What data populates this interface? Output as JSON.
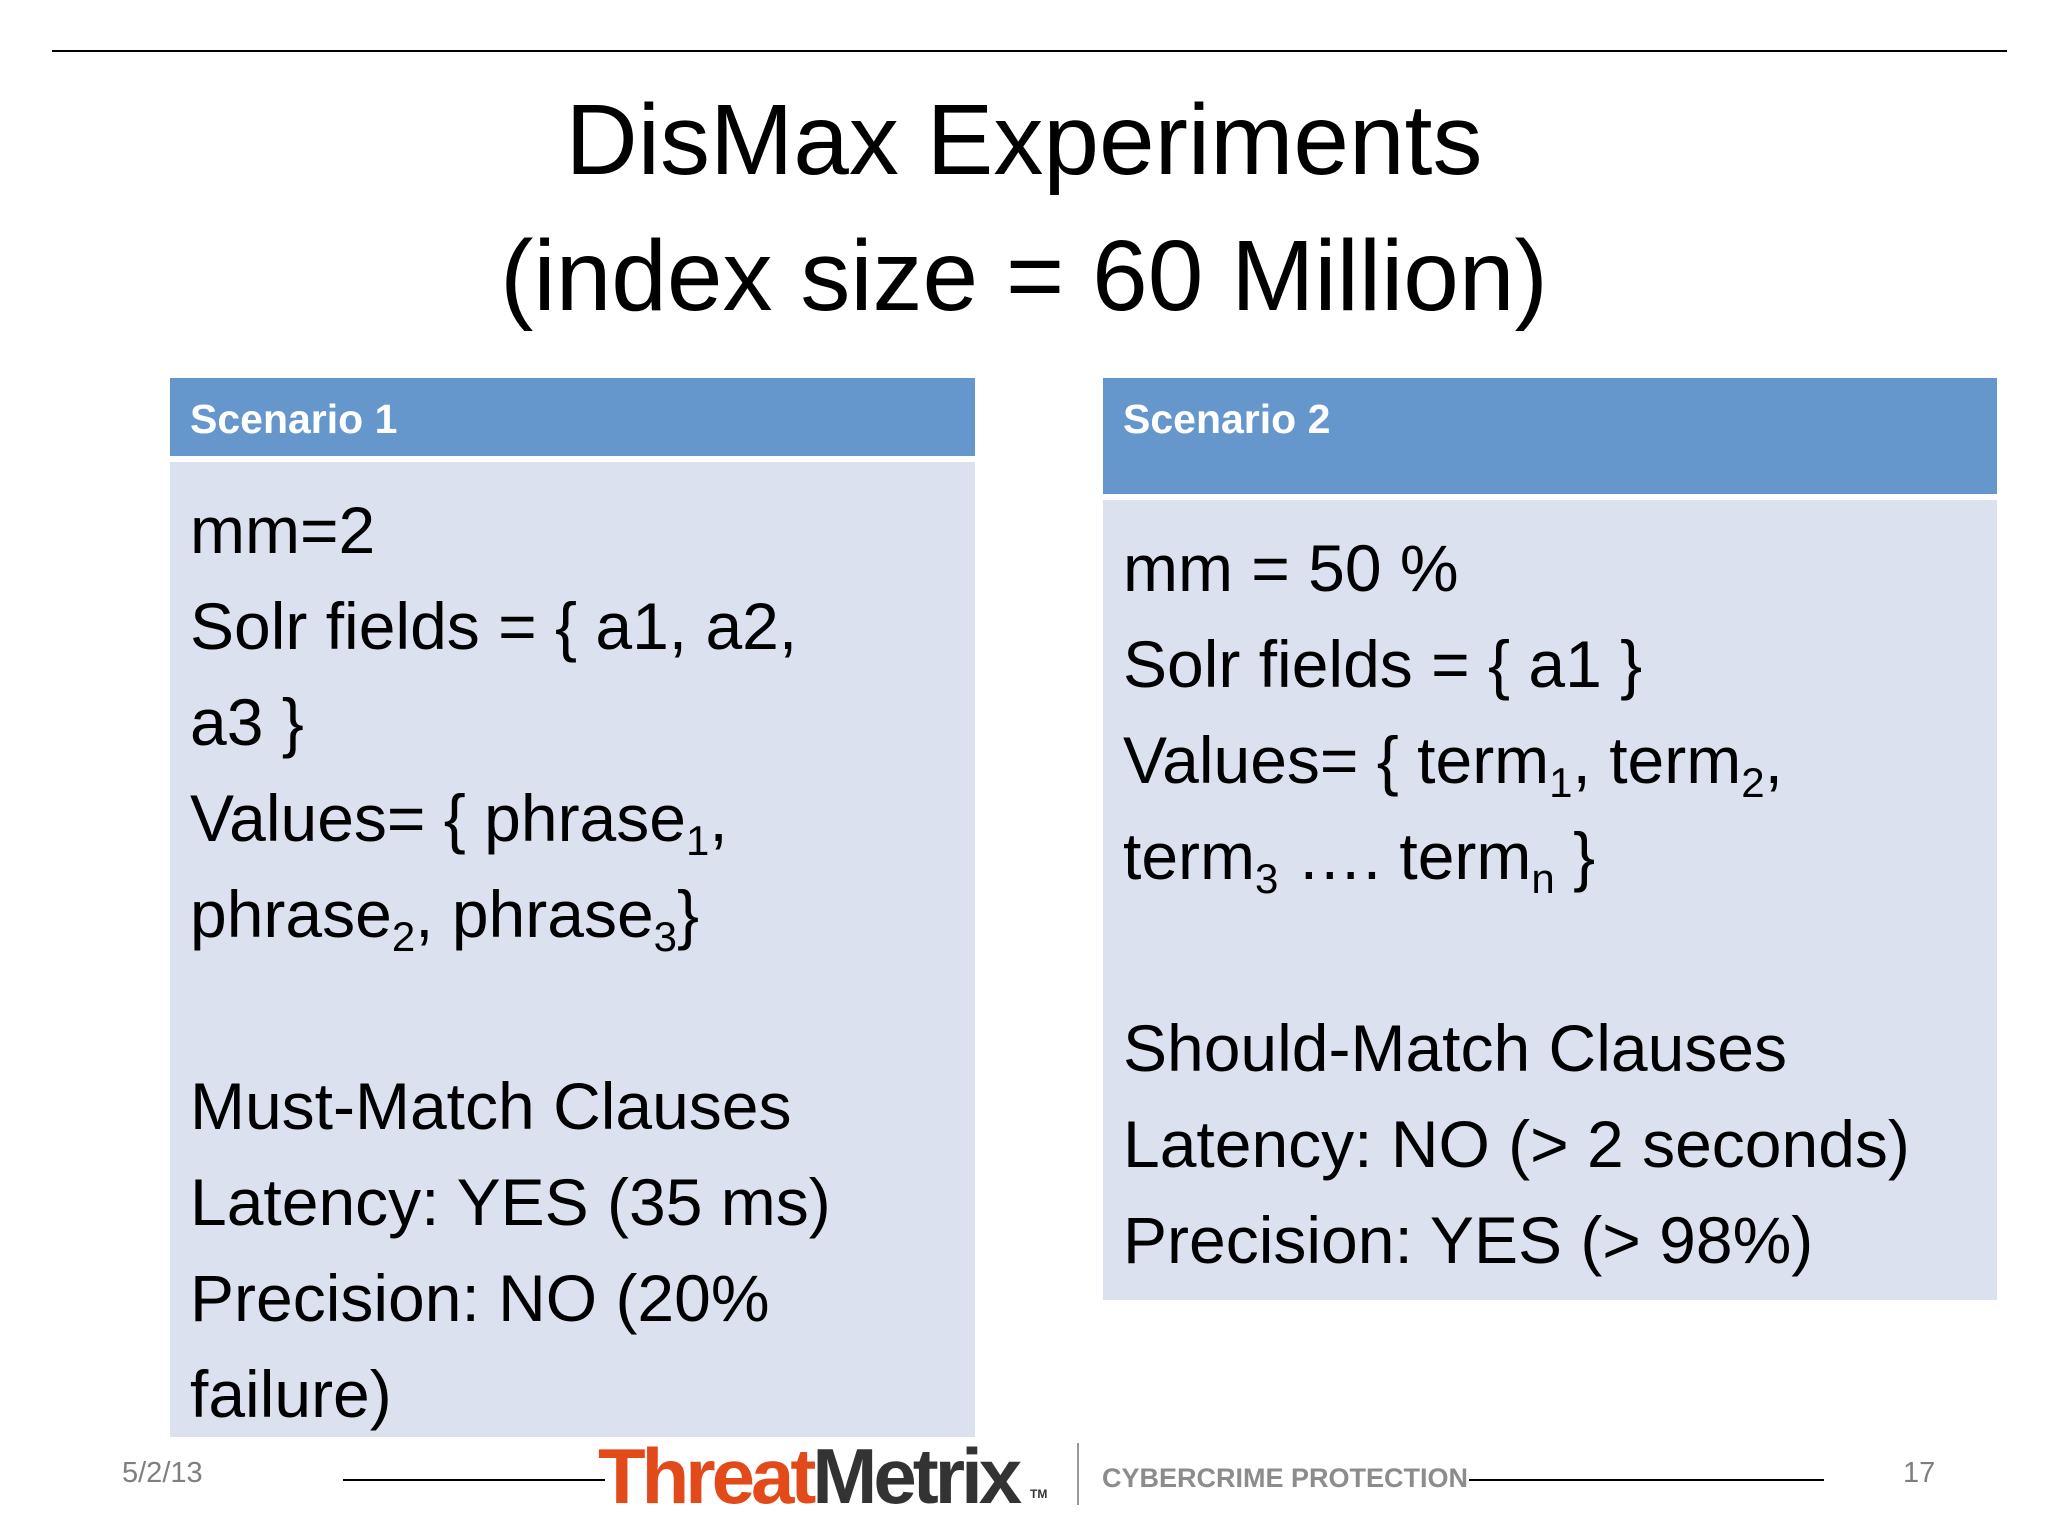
{
  "slide": {
    "title_line1": "DisMax Experiments",
    "title_line2": "(index size = 60 Million)",
    "date": "5/2/13",
    "page_number": "17"
  },
  "scenario1": {
    "header": "Scenario 1",
    "mm": "mm=2",
    "fields_line1": "Solr fields = { a1, a2,",
    "fields_line2": "a3 }",
    "values_prefix": "Values= { phrase",
    "values_sub1": "1",
    "values_sep1": ",",
    "values_line2_a": "phrase",
    "values_sub2": "2",
    "values_line2_b": ", phrase",
    "values_sub3": "3",
    "values_close": "}",
    "clause": "Must-Match Clauses",
    "latency": "Latency: YES (35 ms)",
    "precision_line1": "Precision: NO (20%",
    "precision_line2": "failure)"
  },
  "scenario2": {
    "header": "Scenario 2",
    "mm": "mm = 50 %",
    "fields": "Solr fields = { a1 }",
    "values_prefix": "Values= { term",
    "values_sub1": "1",
    "values_mid": ", term",
    "values_sub2": "2",
    "values_sep": ",",
    "values_line2_a": "term",
    "values_sub3": "3",
    "values_line2_b": " …. term",
    "values_subn": "n",
    "values_close": " }",
    "clause": "Should-Match Clauses",
    "latency": "Latency: NO (> 2 seconds)",
    "precision": "Precision: YES (> 98%)"
  },
  "footer": {
    "brand_part1": "Threat",
    "brand_part2": "Metrix",
    "brand_tm": "TM",
    "tagline": "CYBERCRIME PROTECTION"
  },
  "colors": {
    "header_blue": "#6597cc",
    "body_blue": "#dbe1ee",
    "brand_orange": "#e24a1a"
  }
}
